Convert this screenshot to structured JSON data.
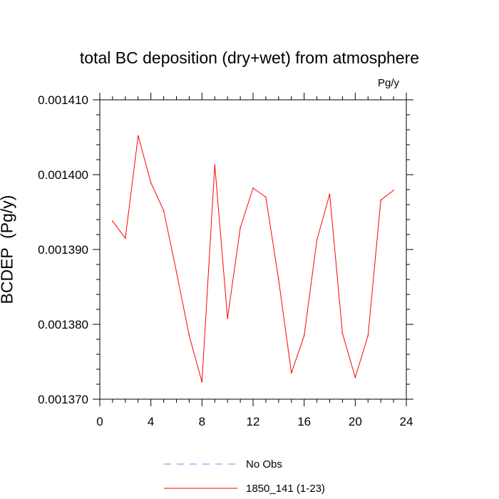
{
  "chart_data": {
    "type": "line",
    "title": "total BC deposition (dry+wet) from atmosphere",
    "units_label": "Pg/y",
    "xlabel": "",
    "ylabel": "BCDEP  (Pg/y)",
    "xlim": [
      0,
      24
    ],
    "ylim": [
      0.00137,
      0.00141
    ],
    "x_ticks": [
      "0",
      "4",
      "8",
      "12",
      "16",
      "20",
      "24"
    ],
    "y_ticks": [
      "0.001370",
      "0.001380",
      "0.001390",
      "0.001400",
      "0.001410"
    ],
    "series": [
      {
        "name": "1850_141 (1-23)",
        "color": "#ff0000",
        "style": "solid",
        "x": [
          1,
          2,
          3,
          4,
          5,
          6,
          7,
          8,
          9,
          10,
          11,
          12,
          13,
          14,
          15,
          16,
          17,
          18,
          19,
          20,
          21,
          22,
          23
        ],
        "y": [
          0.0013938,
          0.0013915,
          0.0014052,
          0.0013989,
          0.0013952,
          0.001387,
          0.0013785,
          0.0013723,
          0.0014013,
          0.0013808,
          0.0013929,
          0.0013982,
          0.001397,
          0.001386,
          0.0013735,
          0.0013785,
          0.0013913,
          0.0013974,
          0.0013788,
          0.0013729,
          0.0013785,
          0.0013966,
          0.0013979
        ]
      }
    ],
    "legend": {
      "placement": "bottom-center",
      "entries": [
        {
          "label": "No Obs",
          "color": "#8080ff",
          "style": "dashed"
        },
        {
          "label": "1850_141 (1-23)",
          "color": "#ff0000",
          "style": "solid"
        }
      ]
    },
    "grid": false
  }
}
